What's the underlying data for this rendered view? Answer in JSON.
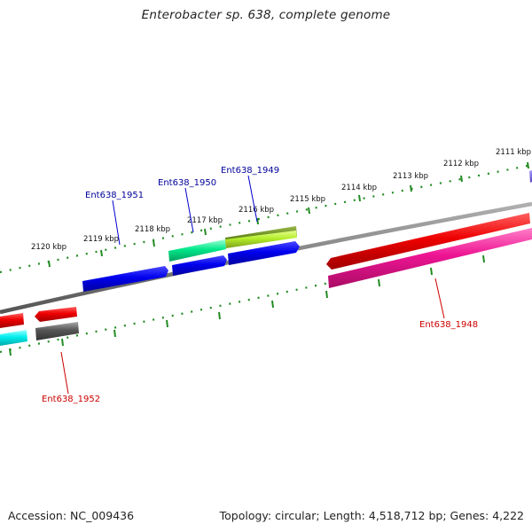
{
  "title": "Enterobacter sp. 638, complete genome",
  "footer": {
    "accession": "Accession: NC_009436",
    "summary": "Topology: circular; Length: 4,518,712 bp; Genes: 4,222"
  },
  "kbp_labels": [
    "2111 kbp",
    "2112 kbp",
    "2113 kbp",
    "2114 kbp",
    "2115 kbp",
    "2116 kbp",
    "2117 kbp",
    "2118 kbp",
    "2119 kbp",
    "2120 kbp"
  ],
  "gene_labels": [
    {
      "text": "Ent638_1948",
      "color": "#cc0000"
    },
    {
      "text": "Ent638_1949",
      "color": "#000099"
    },
    {
      "text": "Ent638_1950",
      "color": "#000099"
    },
    {
      "text": "Ent638_1951",
      "color": "#000099"
    },
    {
      "text": "Ent638_1952",
      "color": "#cc0000"
    }
  ],
  "colors": {
    "backbone": "#808080",
    "ticks": "#228b22",
    "blue": "#0000ee",
    "red": "#ee0000",
    "magenta": "#ee1493",
    "cyan": "#00eeee",
    "gray": "#555555",
    "spring_green": "#00e88a",
    "olive": "#6b8e23",
    "yellow_green": "#b4ee2a",
    "slate": "#7b68ee"
  }
}
